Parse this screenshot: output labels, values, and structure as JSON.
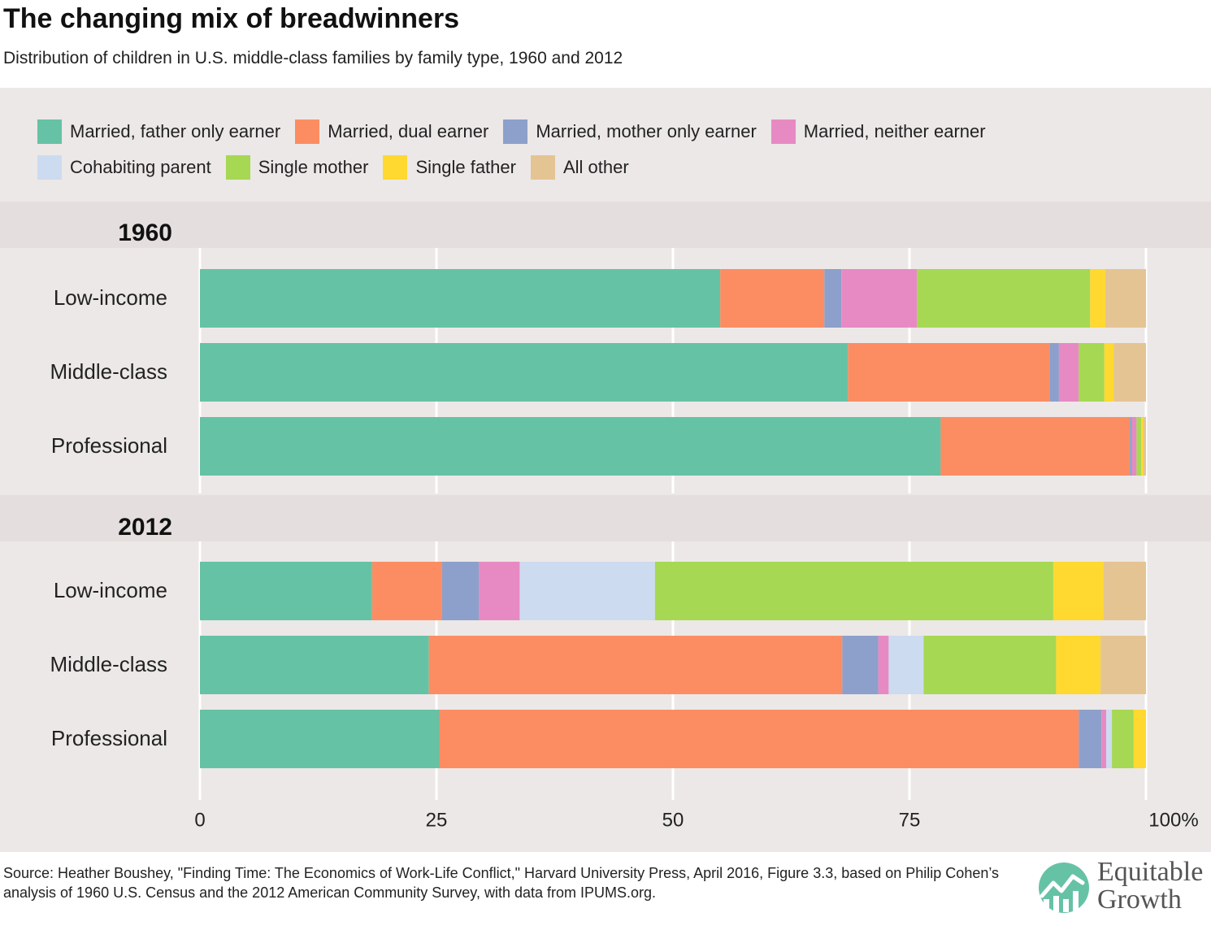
{
  "title": "The changing mix of breadwinners",
  "subtitle": "Distribution of children in U.S. middle-class families by family type, 1960 and 2012",
  "source": "Source: Heather Boushey, \"Finding Time: The Economics of Work-Life Conflict,\" Harvard University Press, April 2016, Figure 3.3, based on Philip Cohen’s analysis of 1960 U.S. Census and the 2012 American Community Survey, with data from IPUMS.org.",
  "logo": {
    "line1": "Equitable",
    "line2": "Growth"
  },
  "chart_data": {
    "type": "bar",
    "orientation": "horizontal",
    "stacked": true,
    "xlim": [
      0,
      100
    ],
    "x_ticks": [
      "0",
      "25",
      "50",
      "75",
      "100%"
    ],
    "x_tick_values": [
      0,
      25,
      50,
      75,
      100
    ],
    "grid": true,
    "legend_position": "top",
    "series_names": [
      "Married, father only earner",
      "Married, dual earner",
      "Married, mother only earner",
      "Married, neither earner",
      "Cohabiting parent",
      "Single mother",
      "Single father",
      "All other"
    ],
    "series_colors": [
      "#66c2a5",
      "#fc8d62",
      "#8da0cb",
      "#e78ac3",
      "#cddbf0",
      "#a6d854",
      "#ffd92f",
      "#e5c494"
    ],
    "groups": [
      {
        "label": "1960",
        "categories": [
          "Low-income",
          "Middle-class",
          "Professional"
        ],
        "rows": [
          [
            55.0,
            11.0,
            1.8,
            8.0,
            0.0,
            18.3,
            1.6,
            4.3
          ],
          [
            68.5,
            21.3,
            1.0,
            2.1,
            0.0,
            2.7,
            1.0,
            3.4
          ],
          [
            78.3,
            20.0,
            0.2,
            0.5,
            0.0,
            0.5,
            0.2,
            0.3
          ]
        ]
      },
      {
        "label": "2012",
        "categories": [
          "Low-income",
          "Middle-class",
          "Professional"
        ],
        "rows": [
          [
            18.2,
            7.4,
            3.9,
            4.3,
            14.3,
            42.1,
            5.3,
            4.5
          ],
          [
            24.2,
            43.7,
            3.8,
            1.1,
            3.7,
            14.0,
            4.7,
            4.8
          ],
          [
            25.3,
            67.6,
            2.4,
            0.5,
            0.6,
            2.3,
            1.3,
            0.0
          ]
        ]
      }
    ]
  }
}
